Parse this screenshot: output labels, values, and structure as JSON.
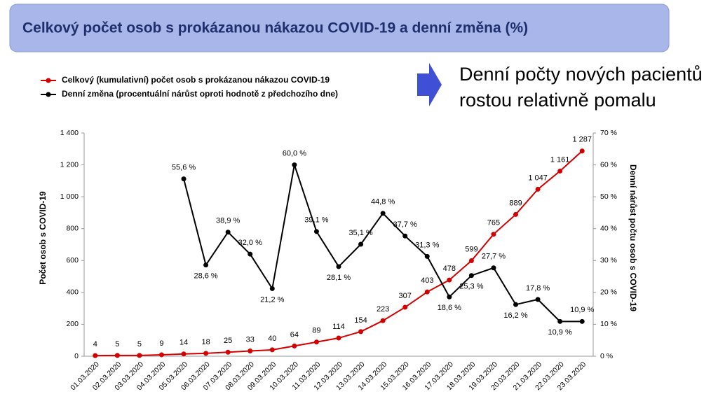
{
  "chart_data": {
    "type": "line",
    "title": "Celkový počet osob s prokázanou nákazou COVID-19 a denní změna (%)",
    "annotation": [
      "Denní počty nových pacientů",
      "rostou relativně pomalu"
    ],
    "y_label": "Počet osob s COVID-19",
    "y2_label": "Denní nárůst počtu osob s COVID-19",
    "categories": [
      "01.03.2020",
      "02.03.2020",
      "03.03.2020",
      "04.03.2020",
      "05.03.2020",
      "06.03.2020",
      "07.03.2020",
      "08.03.2020",
      "09.03.2020",
      "10.03.2020",
      "11.03.2020",
      "12.03.2020",
      "13.03.2020",
      "14.03.2020",
      "15.03.2020",
      "16.03.2020",
      "17.03.2020",
      "18.03.2020",
      "19.03.2020",
      "20.03.2020",
      "21.03.2020",
      "22.03.2020",
      "23.03.2020"
    ],
    "series": [
      {
        "name": "Celkový (kumulativní) počet osob s prokázanou nákazou COVID-19",
        "color": "#d40000",
        "values": [
          4,
          5,
          5,
          9,
          14,
          18,
          25,
          33,
          40,
          64,
          89,
          114,
          154,
          223,
          307,
          403,
          478,
          599,
          765,
          889,
          1047,
          1161,
          1287
        ],
        "value_labels": [
          "4",
          "5",
          "5",
          "9",
          "14",
          "18",
          "25",
          "33",
          "40",
          "64",
          "89",
          "114",
          "154",
          "223",
          "307",
          "403",
          "478",
          "599",
          "765",
          "889",
          "1 047",
          "1 161",
          "1 287"
        ]
      },
      {
        "name": "Denní změna (procentuální nárůst oproti hodnotě z předchozího dne)",
        "color": "#000000",
        "axis": "y2",
        "values": [
          null,
          null,
          null,
          null,
          55.6,
          28.6,
          38.9,
          32.0,
          21.2,
          60.0,
          39.1,
          28.1,
          35.1,
          44.8,
          37.7,
          31.3,
          18.6,
          25.3,
          27.7,
          16.2,
          17.8,
          10.9,
          10.9
        ],
        "value_labels": [
          null,
          null,
          null,
          null,
          "55,6 %",
          "28,6 %",
          "38,9 %",
          "32,0 %",
          "21,2 %",
          "60,0 %",
          "39,1 %",
          "28,1 %",
          "35,1 %",
          "44,8 %",
          "37,7 %",
          "31,3 %",
          "18,6 %",
          "25,3 %",
          "27,7 %",
          "16,2 %",
          "17,8 %",
          "10,9 %",
          "10,9 %"
        ]
      }
    ],
    "ylim": [
      0,
      1400
    ],
    "yticks": [
      0,
      200,
      400,
      600,
      800,
      {
        "value": 1000,
        "label": "1 000"
      },
      {
        "value": 1200,
        "label": "1 200"
      },
      {
        "value": 1400,
        "label": "1 400"
      }
    ],
    "y2lim": [
      0,
      70
    ],
    "y2ticks": [
      {
        "value": 0,
        "label": "0 %"
      },
      {
        "value": 10,
        "label": "10 %"
      },
      {
        "value": 20,
        "label": "20 %"
      },
      {
        "value": 30,
        "label": "30 %"
      },
      {
        "value": 40,
        "label": "40 %"
      },
      {
        "value": 50,
        "label": "50 %"
      },
      {
        "value": 60,
        "label": "60 %"
      },
      {
        "value": 70,
        "label": "70 %"
      }
    ]
  }
}
